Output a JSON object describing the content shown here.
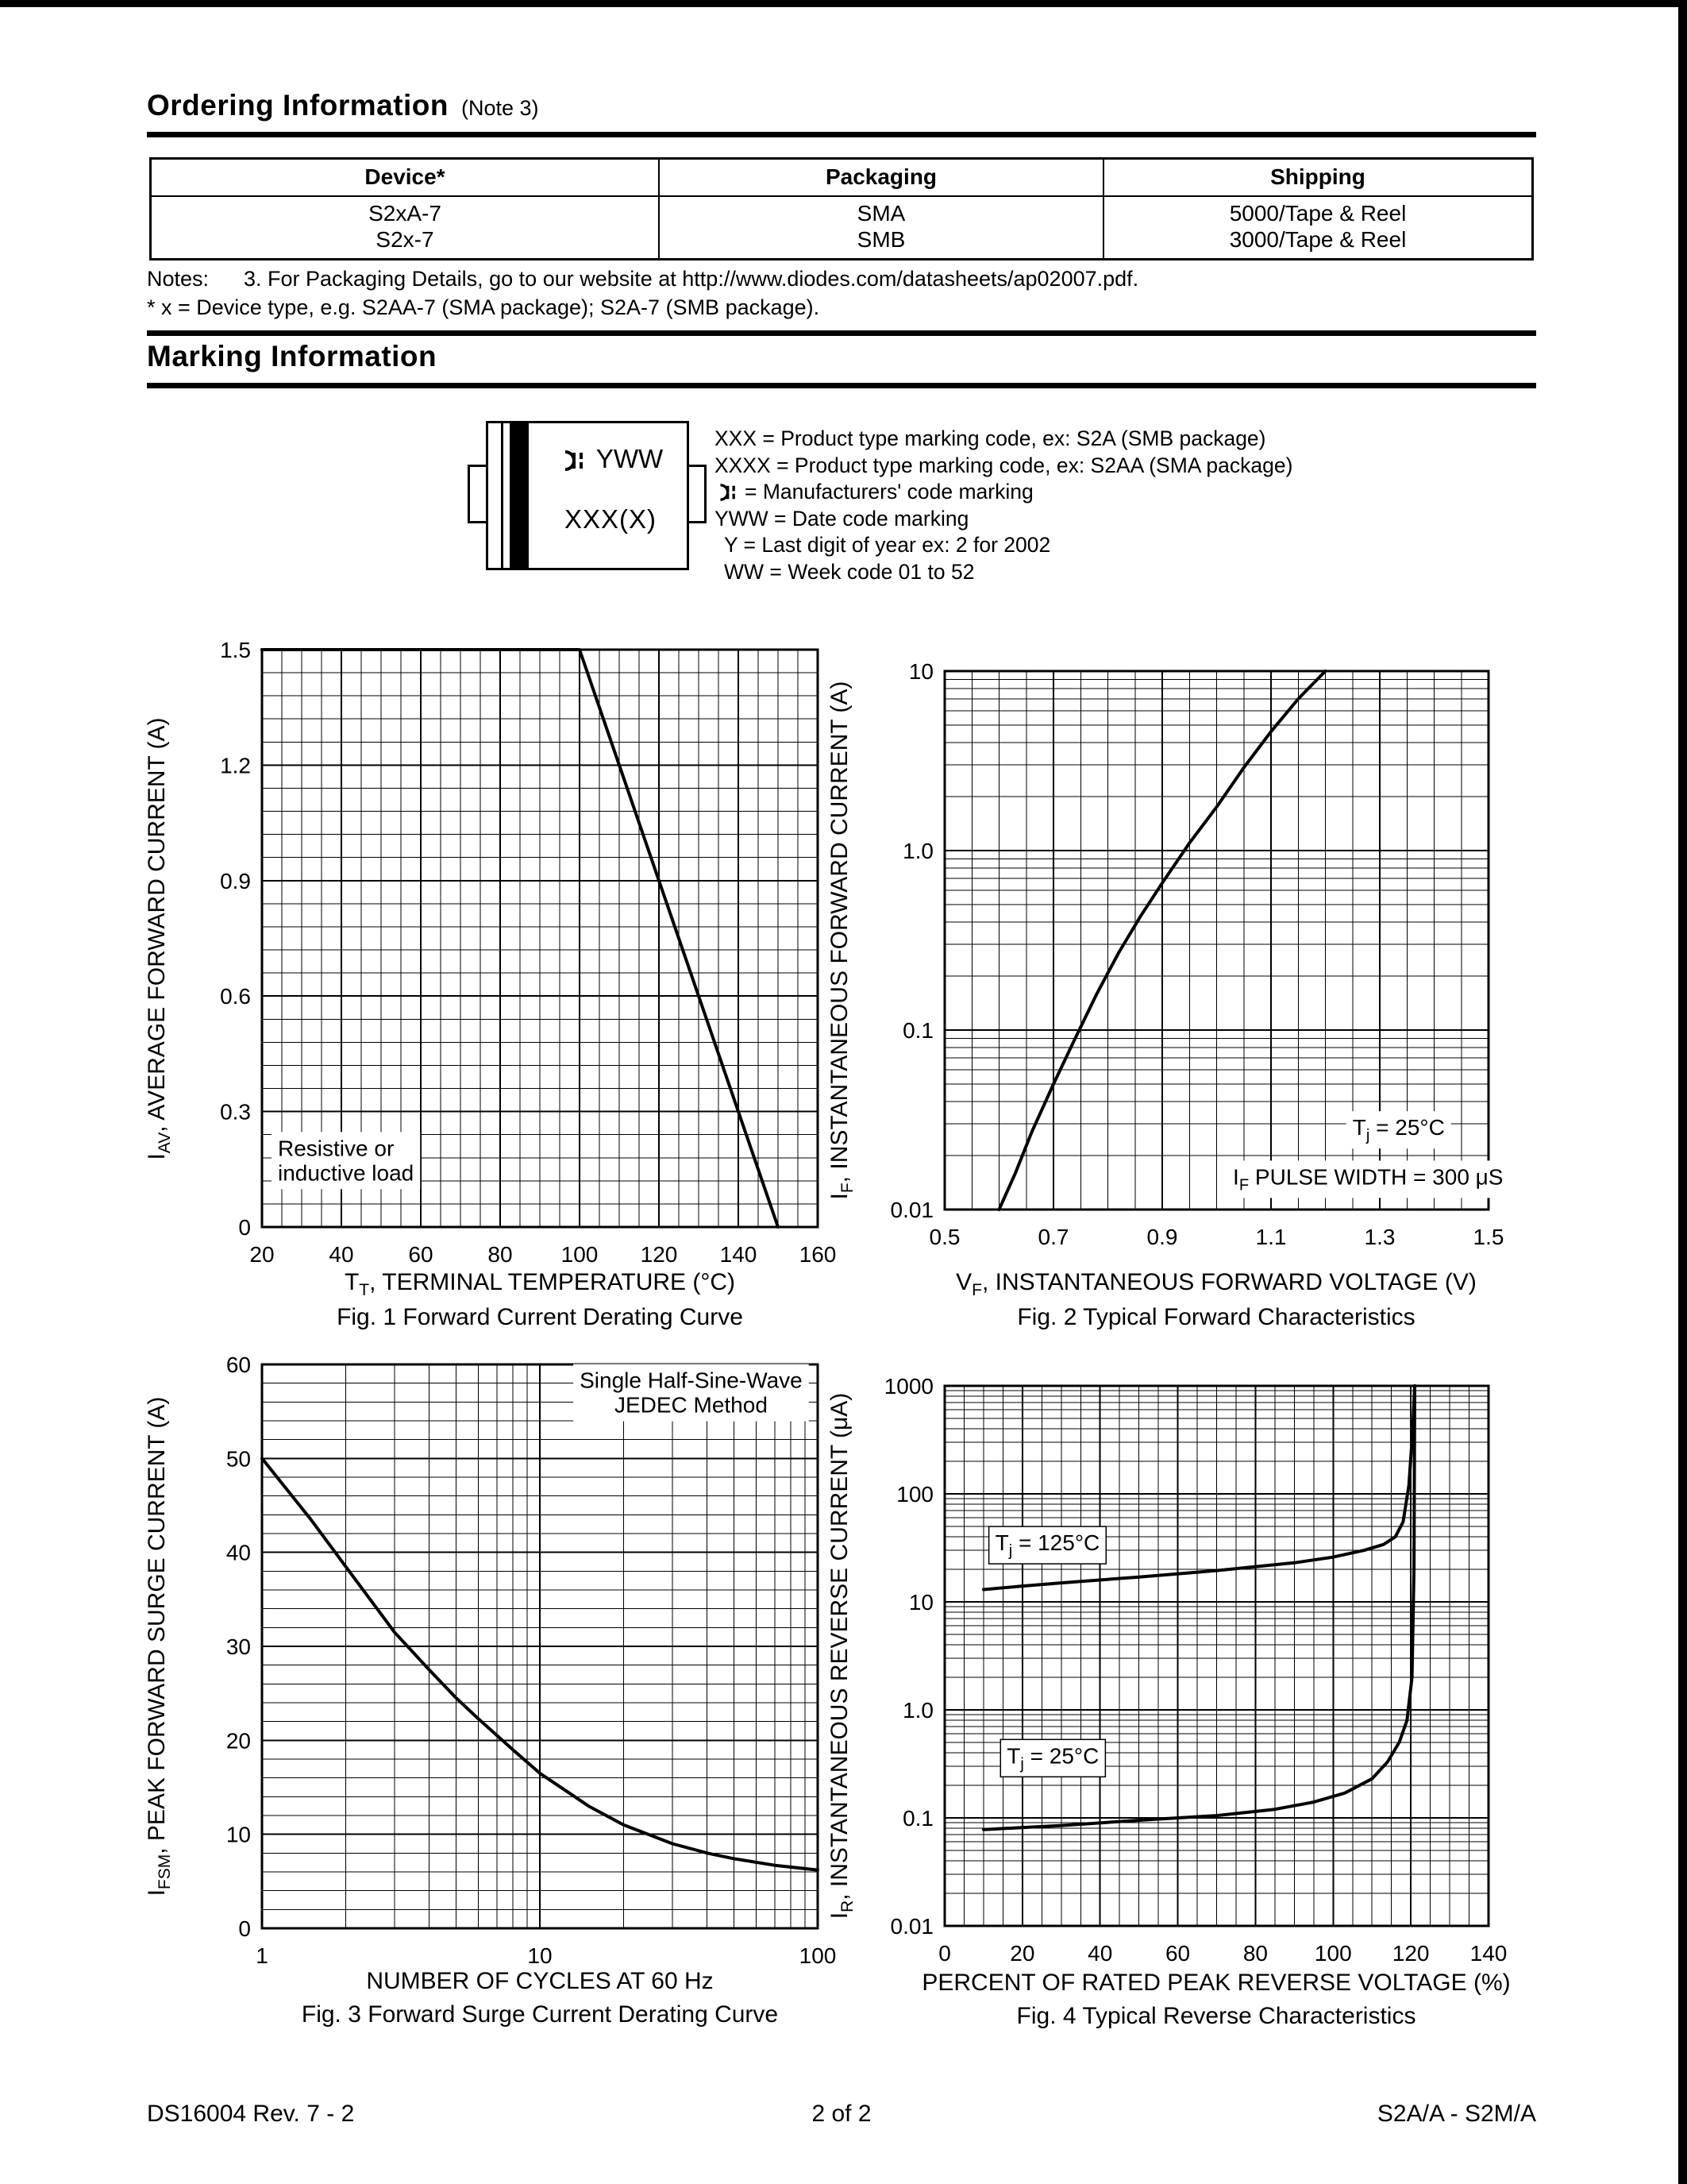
{
  "page": {
    "footer": {
      "left": "DS16004 Rev. 7 - 2",
      "center": "2 of 2",
      "right": "S2A/A - S2M/A"
    }
  },
  "ordering": {
    "title": "Ordering Information",
    "title_note": "(Note 3)",
    "table": {
      "headers": [
        "Device*",
        "Packaging",
        "Shipping"
      ],
      "rows": [
        [
          "S2xA-7",
          "SMA",
          "5000/Tape & Reel"
        ],
        [
          "S2x-7",
          "SMB",
          "3000/Tape & Reel"
        ]
      ]
    },
    "notes_label": "Notes:",
    "note_3": "3.  For Packaging Details, go to our website at http://www.diodes.com/datasheets/ap02007.pdf.",
    "note_x": "* x = Device type, e.g. S2AA-7 (SMA package); S2A-7 (SMB package)."
  },
  "marking": {
    "title": "Marking Information",
    "package": {
      "line1_text": "YWW",
      "line2_text": "XXX(X)"
    },
    "legend": [
      "XXX = Product type marking code, ex: S2A (SMB package)",
      "XXXX = Product type marking code, ex: S2AA (SMA package)",
      "= Manufacturers' code marking",
      "YWW = Date code marking",
      "Y = Last digit of year ex: 2 for 2002",
      "WW = Week code 01 to 52"
    ]
  },
  "chart_data": [
    {
      "id": "fig1",
      "type": "line",
      "caption": "Fig. 1  Forward Current Derating Curve",
      "x_title": {
        "pre": "T",
        "sub": "T",
        "post": ", TERMINAL TEMPERATURE (°C)"
      },
      "y_title": {
        "pre": "I",
        "sub": "AV",
        "post": ", AVERAGE FORWARD CURRENT (A)"
      },
      "x": {
        "scale": "linear",
        "min": 20,
        "max": 160,
        "minor_step": 5,
        "ticks": [
          20,
          40,
          60,
          80,
          100,
          120,
          140,
          160
        ]
      },
      "y": {
        "scale": "linear",
        "min": 0,
        "max": 1.5,
        "minor_step": 0.06,
        "ticks": [
          0,
          0.3,
          0.6,
          0.9,
          1.2,
          1.5
        ],
        "tick_labels": [
          "0",
          "0.3",
          "0.6",
          "0.9",
          "1.2",
          "1.5"
        ]
      },
      "series": [
        {
          "name": "forward-current-derating",
          "points": [
            [
              20,
              1.5
            ],
            [
              100,
              1.5
            ],
            [
              150,
              0
            ]
          ]
        }
      ],
      "annotations": [
        {
          "name": "load-note",
          "x": 24,
          "y": 0.185,
          "anchor": "start",
          "size": 25,
          "line_height": 31,
          "bg": true,
          "lines": [
            [
              {
                "t": "Resistive or"
              }
            ],
            [
              {
                "t": "inductive load"
              }
            ]
          ]
        }
      ]
    },
    {
      "id": "fig2",
      "type": "line",
      "caption": "Fig. 2  Typical Forward Characteristics",
      "x_title": {
        "pre": "V",
        "sub": "F",
        "post": ", INSTANTANEOUS FORWARD VOLTAGE (V)"
      },
      "y_title": {
        "pre": "I",
        "sub": "F",
        "post": ", INSTANTANEOUS FORWARD CURRENT (A)"
      },
      "x": {
        "scale": "linear",
        "min": 0.5,
        "max": 1.5,
        "minor_step": 0.05,
        "ticks": [
          0.5,
          0.7,
          0.9,
          1.1,
          1.3,
          1.5
        ],
        "tick_labels": [
          "0.5",
          "0.7",
          "0.9",
          "1.1",
          "1.3",
          "1.5"
        ]
      },
      "y": {
        "scale": "log",
        "min": 0.01,
        "max": 10,
        "ticks": [
          0.01,
          0.1,
          1,
          10
        ],
        "tick_labels": [
          "0.01",
          "0.1",
          "1.0",
          "10"
        ]
      },
      "series": [
        {
          "name": "typical-forward",
          "points": [
            [
              0.6,
              0.01
            ],
            [
              0.63,
              0.016
            ],
            [
              0.66,
              0.027
            ],
            [
              0.7,
              0.05
            ],
            [
              0.74,
              0.09
            ],
            [
              0.78,
              0.16
            ],
            [
              0.82,
              0.27
            ],
            [
              0.86,
              0.43
            ],
            [
              0.9,
              0.66
            ],
            [
              0.95,
              1.1
            ],
            [
              1.0,
              1.75
            ],
            [
              1.05,
              2.9
            ],
            [
              1.1,
              4.6
            ],
            [
              1.15,
              7.0
            ],
            [
              1.2,
              10
            ]
          ]
        }
      ],
      "annotations": [
        {
          "name": "tj-25-label",
          "x": 1.25,
          "y": 0.026,
          "anchor": "start",
          "size": 26,
          "bg": true,
          "lines": [
            [
              {
                "t": "T"
              },
              {
                "t": "j",
                "sub": true
              },
              {
                "t": " = 25°C"
              }
            ]
          ]
        },
        {
          "name": "pulse-width-note",
          "x": 1.03,
          "y": 0.0138,
          "anchor": "start",
          "size": 26,
          "bg": true,
          "lines": [
            [
              {
                "t": "I"
              },
              {
                "t": "F",
                "sub": true
              },
              {
                "t": " PULSE WIDTH = 300 μS"
              }
            ]
          ]
        }
      ]
    },
    {
      "id": "fig3",
      "type": "line",
      "caption": "Fig. 3  Forward Surge Current Derating Curve",
      "x_title": {
        "pre": "NUMBER OF CYCLES AT 60 Hz",
        "sub": "",
        "post": ""
      },
      "y_title": {
        "pre": "I",
        "sub": "FSM",
        "post": ", PEAK FORWARD SURGE CURRENT (A)"
      },
      "x": {
        "scale": "log",
        "min": 1,
        "max": 100,
        "ticks": [
          1,
          10,
          100
        ],
        "tick_labels": [
          "1",
          "10",
          "100"
        ]
      },
      "y": {
        "scale": "linear",
        "min": 0,
        "max": 60,
        "minor_step": 2,
        "ticks": [
          0,
          10,
          20,
          30,
          40,
          50,
          60
        ],
        "tick_labels": [
          "0",
          "10",
          "20",
          "30",
          "40",
          "50",
          "60"
        ]
      },
      "series": [
        {
          "name": "surge-derating",
          "points": [
            [
              1,
              50
            ],
            [
              1.5,
              43.5
            ],
            [
              2,
              38.5
            ],
            [
              3,
              31.5
            ],
            [
              4,
              27.5
            ],
            [
              5,
              24.5
            ],
            [
              6,
              22.3
            ],
            [
              8,
              19
            ],
            [
              10,
              16.5
            ],
            [
              15,
              13
            ],
            [
              20,
              11
            ],
            [
              30,
              9
            ],
            [
              40,
              8
            ],
            [
              50,
              7.4
            ],
            [
              70,
              6.7
            ],
            [
              100,
              6.2
            ]
          ]
        }
      ],
      "annotations": [
        {
          "name": "jedec-note",
          "x": 35,
          "y": 57.5,
          "anchor": "middle",
          "size": 25,
          "line_height": 31,
          "bg": true,
          "lines": [
            [
              {
                "t": "Single Half-Sine-Wave"
              }
            ],
            [
              {
                "t": "JEDEC Method"
              }
            ]
          ]
        }
      ]
    },
    {
      "id": "fig4",
      "type": "line",
      "caption": "Fig. 4  Typical Reverse Characteristics",
      "x_title": {
        "pre": "PERCENT OF RATED PEAK REVERSE VOLTAGE (%)",
        "sub": "",
        "post": ""
      },
      "y_title": {
        "pre": "I",
        "sub": "R",
        "post": ", INSTANTANEOUS REVERSE CURRENT (μA)"
      },
      "x": {
        "scale": "linear",
        "min": 0,
        "max": 140,
        "minor_step": 5,
        "ticks": [
          0,
          20,
          40,
          60,
          80,
          100,
          120,
          140
        ]
      },
      "y": {
        "scale": "log",
        "min": 0.01,
        "max": 1000,
        "ticks": [
          0.01,
          0.1,
          1,
          10,
          100,
          1000
        ],
        "tick_labels": [
          "0.01",
          "0.1",
          "1.0",
          "10",
          "100",
          "1000"
        ]
      },
      "series": [
        {
          "name": "reverse-current-tj-125c",
          "points": [
            [
              10,
              13
            ],
            [
              20,
              14
            ],
            [
              30,
              15
            ],
            [
              50,
              17
            ],
            [
              70,
              19.5
            ],
            [
              90,
              23
            ],
            [
              100,
              26
            ],
            [
              108,
              30
            ],
            [
              113,
              34
            ],
            [
              116,
              40
            ],
            [
              118,
              55
            ],
            [
              119.5,
              120
            ],
            [
              120.5,
              400
            ],
            [
              121,
              1000
            ]
          ]
        },
        {
          "name": "reverse-current-tj-25c",
          "points": [
            [
              10,
              0.078
            ],
            [
              30,
              0.085
            ],
            [
              50,
              0.095
            ],
            [
              70,
              0.105
            ],
            [
              85,
              0.12
            ],
            [
              95,
              0.14
            ],
            [
              103,
              0.17
            ],
            [
              110,
              0.23
            ],
            [
              114,
              0.33
            ],
            [
              117,
              0.5
            ],
            [
              119,
              0.8
            ],
            [
              120.3,
              2
            ],
            [
              120.8,
              20
            ],
            [
              121,
              1000
            ]
          ]
        }
      ],
      "annotations": [
        {
          "name": "tj-125-label",
          "x": 13,
          "y": 30,
          "anchor": "start",
          "size": 26,
          "box": true,
          "lines": [
            [
              {
                "t": "T"
              },
              {
                "t": "j",
                "sub": true
              },
              {
                "t": " = 125°C"
              }
            ]
          ]
        },
        {
          "name": "tj-25-label",
          "x": 16,
          "y": 0.32,
          "anchor": "start",
          "size": 26,
          "box": true,
          "lines": [
            [
              {
                "t": "T"
              },
              {
                "t": "j",
                "sub": true
              },
              {
                "t": " = 25°C"
              }
            ]
          ]
        }
      ]
    }
  ]
}
